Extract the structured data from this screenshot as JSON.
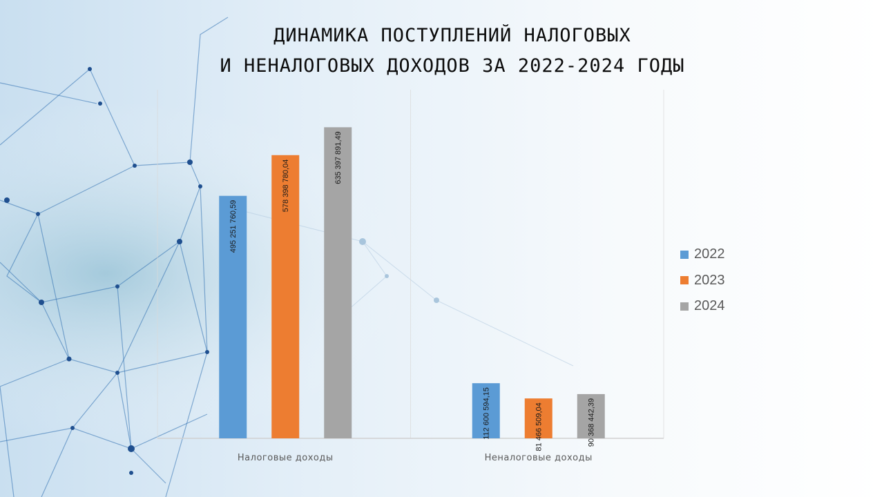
{
  "title_lines": [
    "ДИНАМИКА ПОСТУПЛЕНИЙ НАЛОГОВЫХ",
    "И НЕНАЛОГОВЫХ ДОХОДОВ ЗА 2022-2024 ГОДЫ"
  ],
  "colors": {
    "2022": "#5b9bd5",
    "2023": "#ed7d31",
    "2024": "#a5a5a5"
  },
  "chart_data": {
    "type": "bar",
    "title": "ДИНАМИКА ПОСТУПЛЕНИЙ НАЛОГОВЫХ И НЕНАЛОГОВЫХ ДОХОДОВ ЗА 2022-2024 ГОДЫ",
    "categories": [
      "Налоговые доходы",
      "Неналоговые доходы"
    ],
    "series": [
      {
        "name": "2022",
        "values": [
          495251760.59,
          112600594.15
        ],
        "labels": [
          "495 251 760,59",
          "112 600 594,15"
        ]
      },
      {
        "name": "2023",
        "values": [
          578398780.04,
          81466509.04
        ],
        "labels": [
          "578 398 780,04",
          "81 466 509,04"
        ]
      },
      {
        "name": "2024",
        "values": [
          635397891.49,
          90368442.39
        ],
        "labels": [
          "635 397 891,49",
          "90 368 442,39"
        ]
      }
    ],
    "ylim": [
      0,
      700000000
    ],
    "grid": false,
    "legend_position": "right"
  }
}
